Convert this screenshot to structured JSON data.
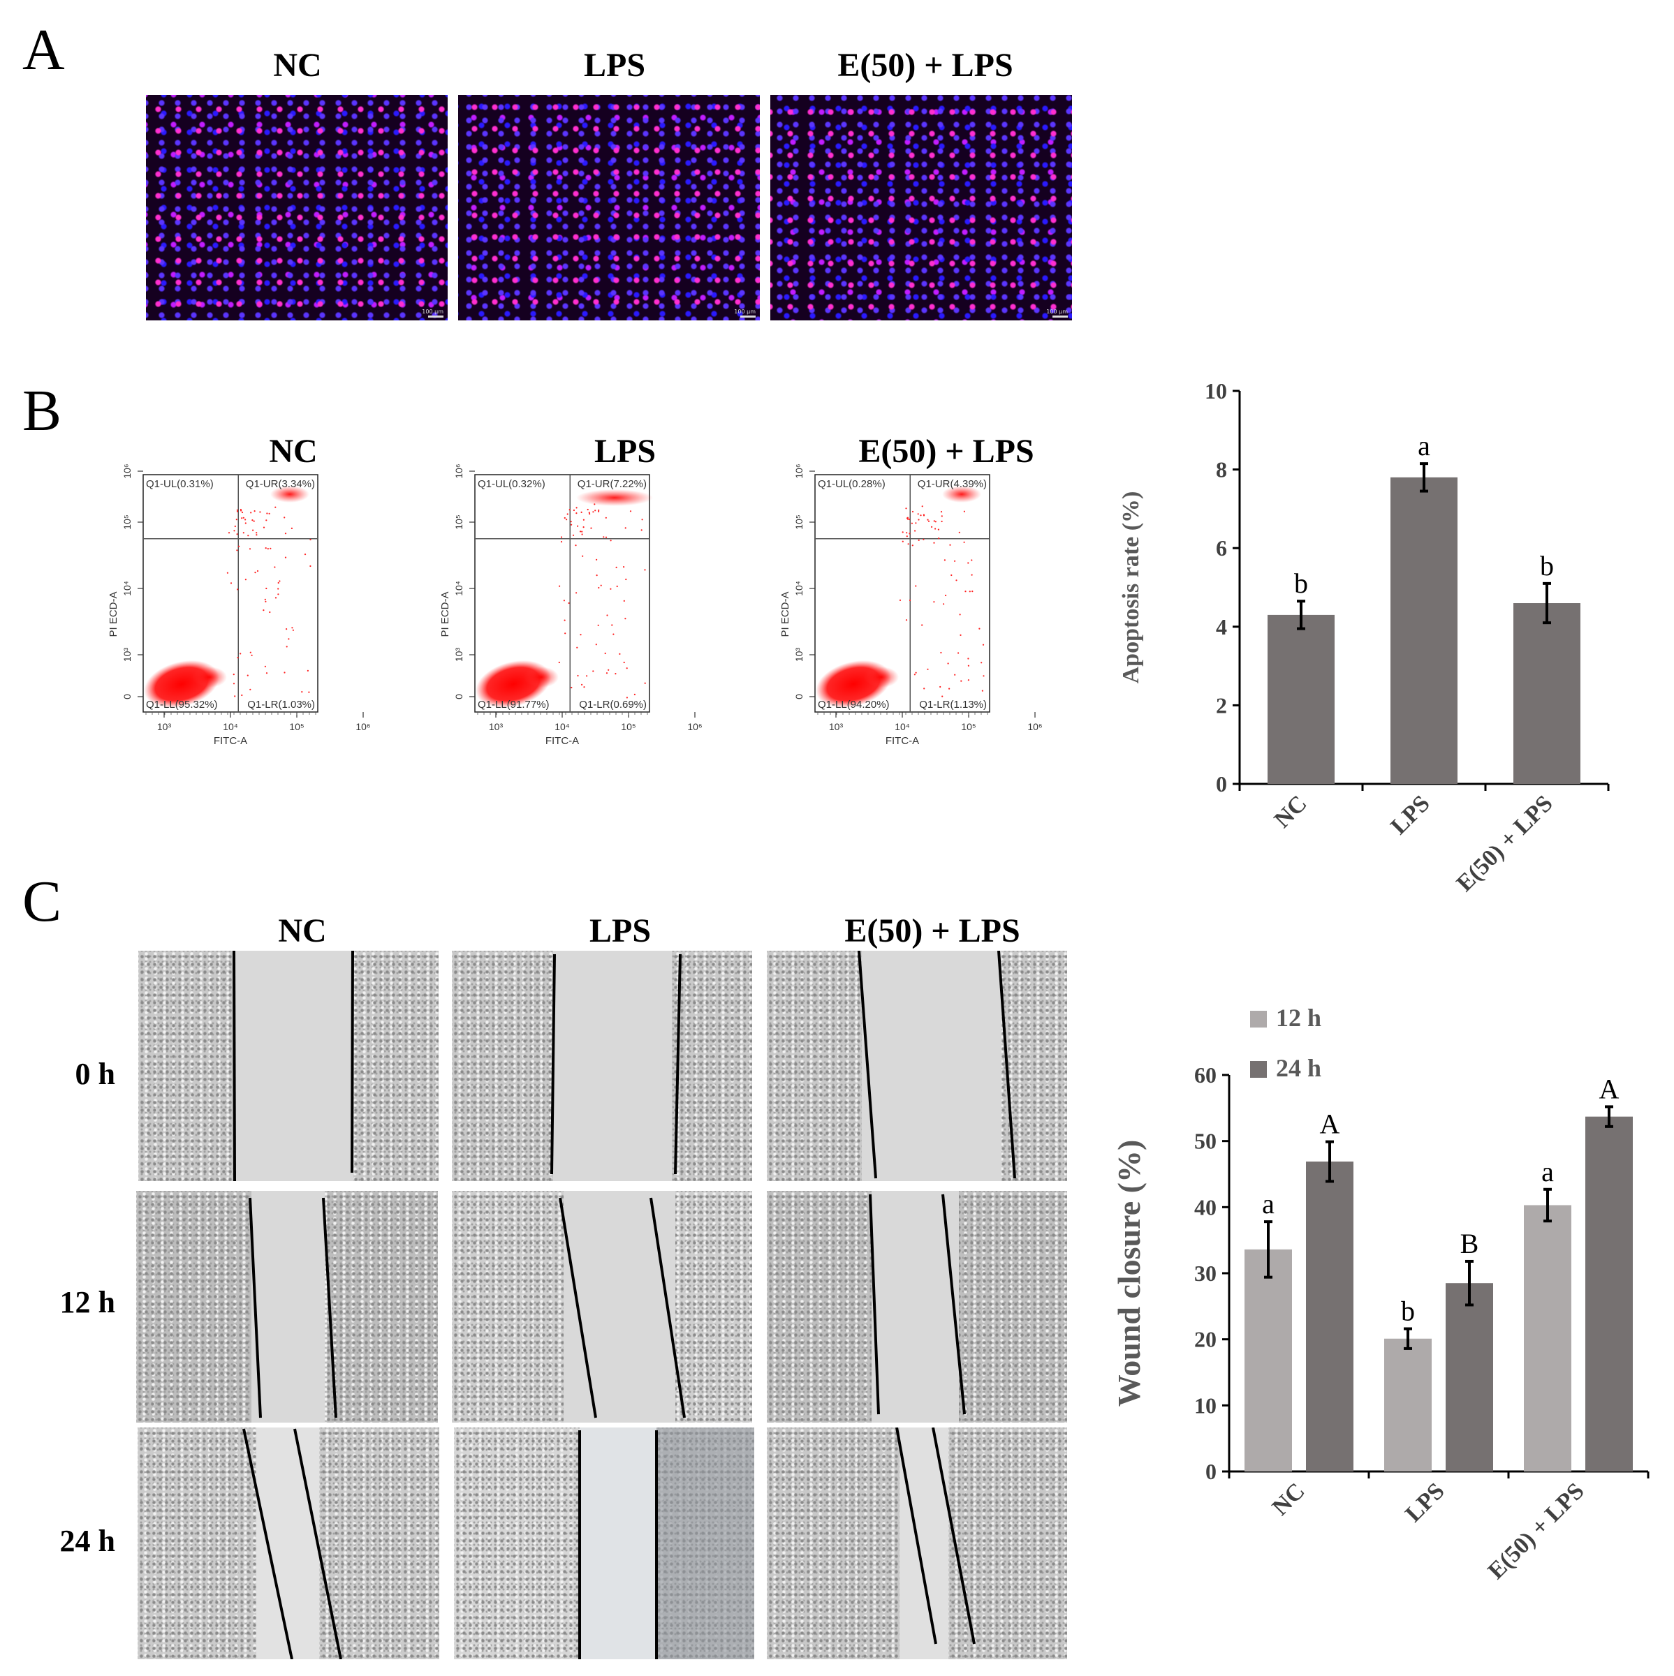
{
  "panelA": {
    "letter": "A",
    "titles": [
      "NC",
      "LPS",
      "E(50) + LPS"
    ],
    "scale_text": "100 μm"
  },
  "panelB": {
    "letter": "B",
    "titles": [
      "NC",
      "LPS",
      "E(50) + LPS"
    ],
    "flow": {
      "xlabel": "FITC-A",
      "ylabel": "PI ECD-A",
      "plots": [
        {
          "ul": "Q1-UL(0.31%)",
          "ur": "Q1-UR(3.34%)",
          "ll": "Q1-LL(95.32%)",
          "lr": "Q1-LR(1.03%)"
        },
        {
          "ul": "Q1-UL(0.32%)",
          "ur": "Q1-UR(7.22%)",
          "ll": "Q1-LL(91.77%)",
          "lr": "Q1-LR(0.69%)"
        },
        {
          "ul": "Q1-UL(0.28%)",
          "ur": "Q1-UR(4.39%)",
          "ll": "Q1-LL(94.20%)",
          "lr": "Q1-LR(1.13%)"
        }
      ],
      "xticks": [
        "10³",
        "10⁴",
        "10⁵",
        "10⁶"
      ],
      "yticks": [
        "0",
        "10³",
        "10⁴",
        "10⁵",
        "10⁶"
      ]
    }
  },
  "panelC": {
    "letter": "C",
    "titles": [
      "NC",
      "LPS",
      "E(50) + LPS"
    ],
    "rows": [
      "0 h",
      "12 h",
      "24 h"
    ]
  },
  "chart_data": [
    {
      "type": "bar",
      "title": "",
      "ylabel": "Apoptosis rate (%)",
      "xlabel": "",
      "categories": [
        "NC",
        "LPS",
        "E(50) + LPS"
      ],
      "ylim": [
        0,
        10
      ],
      "yticks": [
        0,
        2,
        4,
        6,
        8,
        10
      ],
      "series": [
        {
          "values": [
            4.3,
            7.8,
            4.6
          ],
          "errors": [
            0.35,
            0.35,
            0.5
          ],
          "color": "#767171"
        }
      ],
      "annotations": [
        "b",
        "a",
        "b"
      ],
      "legend": "none"
    },
    {
      "type": "bar",
      "title": "",
      "ylabel": "Wound closure (%)",
      "xlabel": "",
      "categories": [
        "NC",
        "LPS",
        "E(50) + LPS"
      ],
      "ylim": [
        0,
        60
      ],
      "yticks": [
        0,
        10,
        20,
        30,
        40,
        50,
        60
      ],
      "series": [
        {
          "name": "12 h",
          "values": [
            33.6,
            20.1,
            40.3
          ],
          "errors": [
            4.2,
            1.5,
            2.4
          ],
          "color": "#aeaaaa",
          "annotations": [
            "a",
            "b",
            "a"
          ]
        },
        {
          "name": "24 h",
          "values": [
            46.9,
            28.5,
            53.7
          ],
          "errors": [
            3.0,
            3.3,
            1.5
          ],
          "color": "#767171",
          "annotations": [
            "A",
            "B",
            "A"
          ]
        }
      ],
      "legend": "top-left"
    }
  ]
}
